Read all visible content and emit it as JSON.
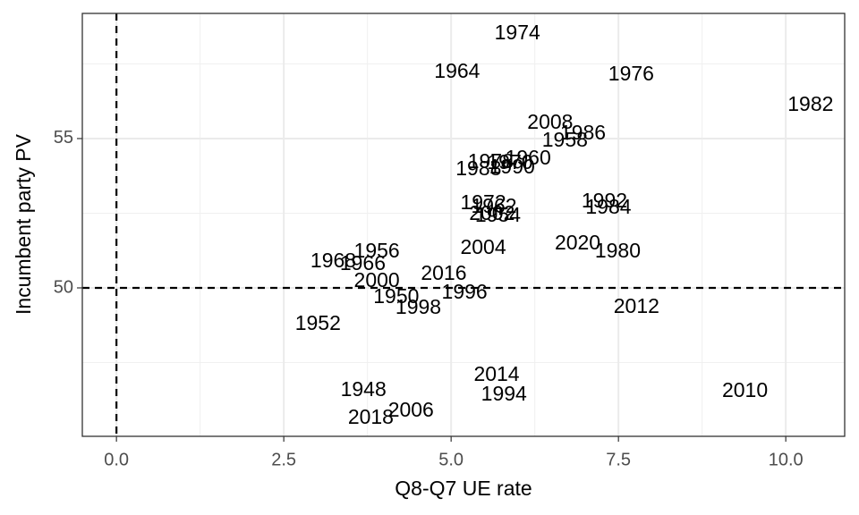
{
  "chart_data": {
    "type": "scatter-text",
    "xlabel": "Q8-Q7 UE rate",
    "ylabel": "Incumbent party PV",
    "labels": [
      "1948",
      "1950",
      "1952",
      "1954",
      "1956",
      "1958",
      "1960",
      "1962",
      "1964",
      "1966",
      "1968",
      "1970",
      "1972",
      "1974",
      "1976",
      "1978",
      "1980",
      "1982",
      "1984",
      "1986",
      "1988",
      "1990",
      "1992",
      "1994",
      "1996",
      "1998",
      "2000",
      "2002",
      "2004",
      "2006",
      "2008",
      "2010",
      "2012",
      "2014",
      "2016",
      "2018",
      "2020"
    ],
    "x": [
      3.69,
      4.18,
      3.01,
      5.7,
      3.89,
      6.7,
      6.15,
      5.64,
      5.09,
      3.68,
      3.24,
      5.88,
      5.48,
      5.99,
      7.69,
      5.59,
      7.49,
      10.37,
      7.35,
      6.97,
      5.41,
      5.91,
      7.29,
      5.79,
      5.2,
      4.51,
      3.89,
      5.61,
      5.48,
      4.4,
      6.48,
      9.39,
      7.77,
      5.68,
      4.89,
      3.8,
      6.89
    ],
    "values": [
      46.56,
      49.67,
      48.77,
      52.4,
      51.2,
      54.91,
      54.31,
      52.69,
      57.22,
      50.78,
      50.87,
      54.16,
      52.81,
      58.5,
      57.13,
      54.19,
      51.2,
      56.11,
      52.66,
      55.15,
      53.95,
      54.01,
      52.87,
      46.41,
      49.82,
      49.31,
      50.21,
      52.46,
      51.32,
      45.87,
      55.51,
      46.53,
      49.34,
      47.07,
      50.45,
      45.63,
      51.47
    ],
    "xlim": [
      -0.51,
      10.88
    ],
    "ylim": [
      45.03,
      59.19
    ],
    "xticks": [
      {
        "value": 0,
        "label": "0.0"
      },
      {
        "value": 2.5,
        "label": "2.5"
      },
      {
        "value": 5,
        "label": "5.0"
      },
      {
        "value": 7.5,
        "label": "7.5"
      },
      {
        "value": 10,
        "label": "10.0"
      }
    ],
    "yticks": [
      50,
      55
    ],
    "hlines": [
      50
    ],
    "vlines": [
      0
    ],
    "grid": true
  }
}
